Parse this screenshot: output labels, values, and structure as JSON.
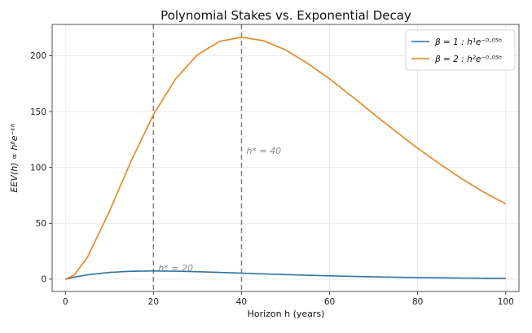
{
  "chart_data": {
    "type": "line",
    "title": "Polynomial Stakes vs. Exponential Decay",
    "xlabel": "Horizon h (years)",
    "ylabel": "EEV(h) ∝ hᵝe⁻ᵏʰ",
    "xlim": [
      -3,
      103
    ],
    "ylim": [
      -11,
      228
    ],
    "xticks": [
      0,
      20,
      40,
      60,
      80,
      100
    ],
    "yticks": [
      0,
      50,
      100,
      150,
      200
    ],
    "grid": true,
    "legend_position": "top-right",
    "series": [
      {
        "name": "β = 1 : h¹e⁻⁰·⁰⁵ʰ",
        "color": "#1f77b4",
        "x": [
          0,
          2,
          5,
          10,
          15,
          20,
          25,
          30,
          35,
          40,
          45,
          50,
          55,
          60,
          65,
          70,
          75,
          80,
          85,
          90,
          95,
          100
        ],
        "y": [
          0,
          1.81,
          3.89,
          6.07,
          7.09,
          7.36,
          7.16,
          6.69,
          6.08,
          5.41,
          4.74,
          4.1,
          3.51,
          2.99,
          2.52,
          2.11,
          1.77,
          1.47,
          1.21,
          1.0,
          0.82,
          0.67
        ]
      },
      {
        "name": "β = 2 : h²e⁻⁰·⁰⁵ʰ",
        "color": "#ff7f0e",
        "x": [
          0,
          2,
          5,
          10,
          15,
          20,
          25,
          30,
          35,
          40,
          45,
          50,
          55,
          60,
          65,
          70,
          75,
          80,
          85,
          90,
          95,
          100
        ],
        "y": [
          0,
          3.62,
          19.47,
          60.65,
          106.3,
          147.2,
          179.1,
          200.8,
          212.8,
          216.5,
          213.4,
          205.2,
          193.2,
          179.2,
          163.8,
          147.9,
          132.3,
          117.2,
          103.2,
          89.9,
          77.9,
          67.4
        ]
      }
    ],
    "vlines": [
      {
        "x": 20,
        "label": "h* = 20",
        "color": "#7f7f7f"
      },
      {
        "x": 40,
        "label": "h* = 40",
        "color": "#7f7f7f"
      }
    ]
  }
}
